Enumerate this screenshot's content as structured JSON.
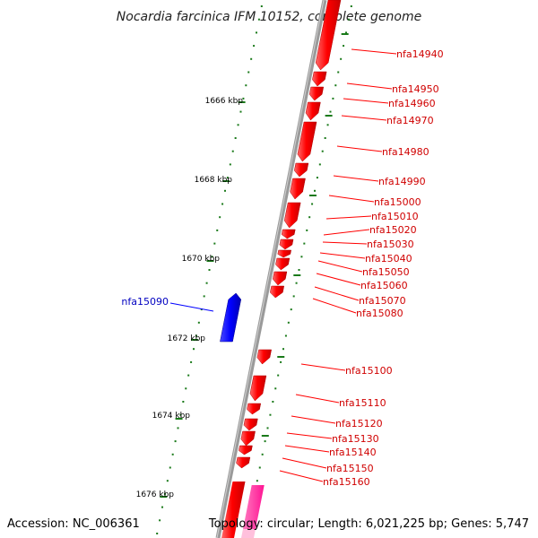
{
  "title": "Nocardia farcinica IFM 10152, complete genome",
  "accession": "Accession: NC_006361",
  "topology": "Topology: circular; Length: 6,021,225 bp; Genes: 5,747",
  "colors": {
    "forward": "#ff0000",
    "reverse": "#0000ff",
    "other": "#ff1493",
    "tick": "#1a7a1a",
    "backbone": "#8c8c8c"
  },
  "kbp_labels": [
    "1666 kbp",
    "1668 kbp",
    "1670 kbp",
    "1672 kbp",
    "1674 kbp",
    "1676 kbp"
  ],
  "genes_forward": [
    "nfa14940",
    "nfa14950",
    "nfa14960",
    "nfa14970",
    "nfa14980",
    "nfa14990",
    "nfa15000",
    "nfa15010",
    "nfa15020",
    "nfa15030",
    "nfa15040",
    "nfa15050",
    "nfa15060",
    "nfa15070",
    "nfa15080",
    "nfa15100",
    "nfa15110",
    "nfa15120",
    "nfa15130",
    "nfa15140",
    "nfa15150",
    "nfa15160"
  ],
  "genes_reverse": [
    "nfa15090"
  ]
}
